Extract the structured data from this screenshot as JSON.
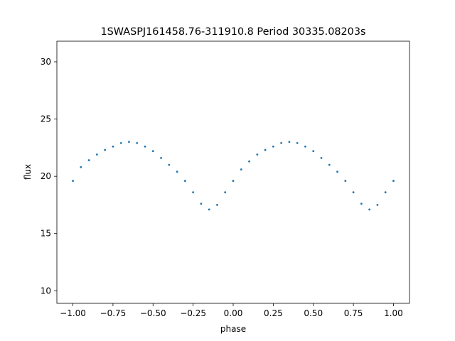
{
  "chart_data": {
    "type": "scatter",
    "title": "1SWASPJ161458.76-311910.8 Period 30335.08203s",
    "xlabel": "phase",
    "ylabel": "flux",
    "xlim": [
      -1.1,
      1.1
    ],
    "ylim": [
      8.9,
      31.8
    ],
    "xticks": [
      -1.0,
      -0.75,
      -0.5,
      -0.25,
      0.0,
      0.25,
      0.5,
      0.75,
      1.0
    ],
    "xtick_labels": [
      "−1.00",
      "−0.75",
      "−0.50",
      "−0.25",
      "0.00",
      "0.25",
      "0.50",
      "0.75",
      "1.00"
    ],
    "yticks": [
      10,
      15,
      20,
      25,
      30
    ],
    "ytick_labels": [
      "10",
      "15",
      "20",
      "25",
      "30"
    ],
    "grid": false,
    "legend": "none",
    "point_color": "#1f77b4",
    "series": [
      {
        "x": [
          -1.0,
          -0.95,
          -0.9,
          -0.85,
          -0.8,
          -0.75,
          -0.7,
          -0.65,
          -0.6,
          -0.55,
          -0.5,
          -0.45,
          -0.4,
          -0.35,
          -0.3,
          -0.25,
          -0.2,
          -0.15,
          -0.1,
          -0.05,
          0.0,
          0.05,
          0.1,
          0.15,
          0.2,
          0.25,
          0.3,
          0.35,
          0.4,
          0.45,
          0.5,
          0.55,
          0.6,
          0.65,
          0.7,
          0.75,
          0.8,
          0.85,
          0.9,
          0.95,
          1.0
        ],
        "y": [
          19.6,
          20.8,
          21.4,
          21.9,
          22.3,
          22.6,
          22.9,
          23.0,
          22.9,
          22.6,
          22.2,
          21.6,
          21.0,
          20.4,
          19.6,
          18.6,
          17.6,
          17.1,
          17.5,
          18.6,
          19.6,
          20.6,
          21.3,
          21.9,
          22.3,
          22.6,
          22.9,
          23.0,
          22.9,
          22.6,
          22.2,
          21.6,
          21.0,
          20.4,
          19.6,
          18.6,
          17.6,
          17.1,
          17.5,
          18.6,
          19.6
        ]
      }
    ]
  }
}
